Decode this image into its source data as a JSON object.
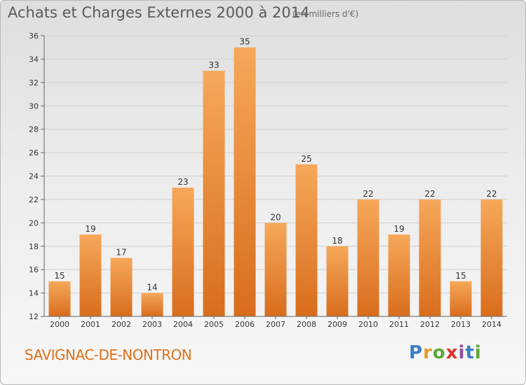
{
  "header": {
    "title": "Achats et Charges Externes 2000 à 2014",
    "subtitle": "(en milliers d'€)"
  },
  "footer": {
    "place": "SAVIGNAC-DE-NONTRON",
    "logo": "Proxiti"
  },
  "colors": {
    "bar_top": "#f6a85a",
    "bar_bottom": "#d86d1c",
    "place_text": "#e0701a"
  },
  "chart_data": {
    "type": "bar",
    "title": "Achats et Charges Externes 2000 à 2014",
    "subtitle": "(en milliers d'€)",
    "categories": [
      "2000",
      "2001",
      "2002",
      "2003",
      "2004",
      "2005",
      "2006",
      "2007",
      "2008",
      "2009",
      "2010",
      "2011",
      "2012",
      "2013",
      "2014"
    ],
    "values": [
      15,
      19,
      17,
      14,
      23,
      33,
      35,
      20,
      25,
      18,
      22,
      19,
      22,
      15,
      22
    ],
    "ylim": [
      12,
      36
    ],
    "yticks": [
      12,
      14,
      16,
      18,
      20,
      22,
      24,
      26,
      28,
      30,
      32,
      34,
      36
    ],
    "grid": true
  }
}
